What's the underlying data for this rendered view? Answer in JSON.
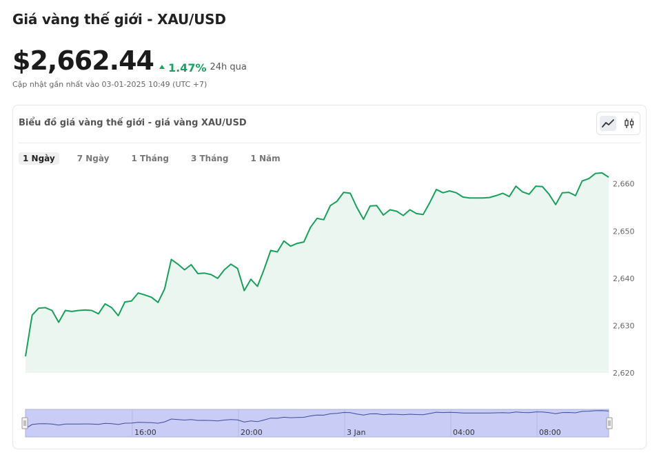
{
  "header": {
    "title": "Giá vàng thế giới - XAU/USD",
    "price": "$2,662.44",
    "change": "1.47%",
    "period": "24h qua",
    "updated": "Cập nhật gần nhất vào 03-01-2025 10:49 (UTC +7)"
  },
  "card": {
    "title": "Biểu đồ giá vàng thế giới - giá vàng XAU/USD",
    "chart_type_buttons": [
      {
        "icon": "line-chart-icon",
        "active": true
      },
      {
        "icon": "candlestick-icon",
        "active": false
      }
    ],
    "ranges": [
      {
        "label": "1 Ngày",
        "active": true
      },
      {
        "label": "7 Ngày",
        "active": false
      },
      {
        "label": "1 Tháng",
        "active": false
      },
      {
        "label": "3 Tháng",
        "active": false
      },
      {
        "label": "1 Năm",
        "active": false
      }
    ]
  },
  "colors": {
    "line": "#17a05a",
    "area": "#eaf6ef",
    "accent_up": "#1aa260",
    "navigator_fill": "#c9cdf5"
  },
  "chart_data": {
    "type": "area",
    "ylim": [
      2620,
      2662
    ],
    "yticks": [
      2620,
      2630,
      2640,
      2650,
      2660
    ],
    "ytick_labels": [
      "2,620",
      "2,630",
      "2,640",
      "2,650",
      "2,660"
    ],
    "navigator_labels": [
      "16:00",
      "20:00",
      "3 Jan",
      "04:00",
      "08:00"
    ],
    "values": [
      2623.5,
      2632.2,
      2633.7,
      2633.8,
      2633.2,
      2630.7,
      2633.2,
      2633.0,
      2633.2,
      2633.3,
      2633.2,
      2632.5,
      2634.6,
      2633.8,
      2632.1,
      2635.0,
      2635.2,
      2636.9,
      2636.5,
      2636.0,
      2634.9,
      2637.8,
      2644.0,
      2643.0,
      2641.8,
      2642.9,
      2641.0,
      2641.1,
      2640.8,
      2640.0,
      2641.8,
      2643.0,
      2642.1,
      2637.4,
      2639.8,
      2638.3,
      2641.9,
      2645.9,
      2645.6,
      2647.9,
      2646.8,
      2647.4,
      2647.7,
      2650.8,
      2652.7,
      2652.4,
      2655.4,
      2656.3,
      2658.2,
      2658.0,
      2655.0,
      2652.5,
      2655.3,
      2655.4,
      2653.4,
      2654.5,
      2654.2,
      2653.3,
      2654.5,
      2653.7,
      2653.5,
      2656.0,
      2658.8,
      2658.1,
      2658.5,
      2658.1,
      2657.2,
      2657.0,
      2657.0,
      2657.0,
      2657.1,
      2657.5,
      2658.0,
      2657.3,
      2659.5,
      2658.3,
      2657.8,
      2659.5,
      2659.4,
      2657.8,
      2655.6,
      2658.1,
      2658.2,
      2657.5,
      2660.6,
      2661.1,
      2662.2,
      2662.3,
      2661.4
    ]
  }
}
